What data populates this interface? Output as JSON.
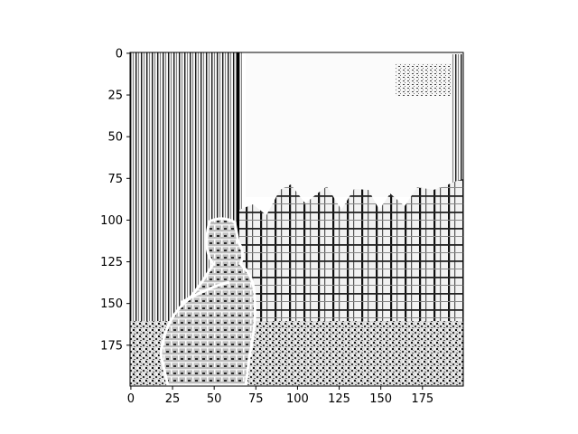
{
  "chart_data": {
    "type": "heatmap",
    "colormap": "gray",
    "xlim": [
      -0.5,
      199.5
    ],
    "ylim": [
      199.5,
      -0.5
    ],
    "x_ticks": [
      0,
      25,
      50,
      75,
      100,
      125,
      150,
      175
    ],
    "y_ticks": [
      0,
      25,
      50,
      75,
      100,
      125,
      150,
      175
    ],
    "x_tick_labels": [
      "0",
      "25",
      "50",
      "75",
      "100",
      "125",
      "150",
      "175"
    ],
    "y_tick_labels": [
      "0",
      "25",
      "50",
      "75",
      "100",
      "125",
      "150",
      "175"
    ],
    "grid": false,
    "frame_color": "#000000",
    "background": "#ffffff"
  }
}
